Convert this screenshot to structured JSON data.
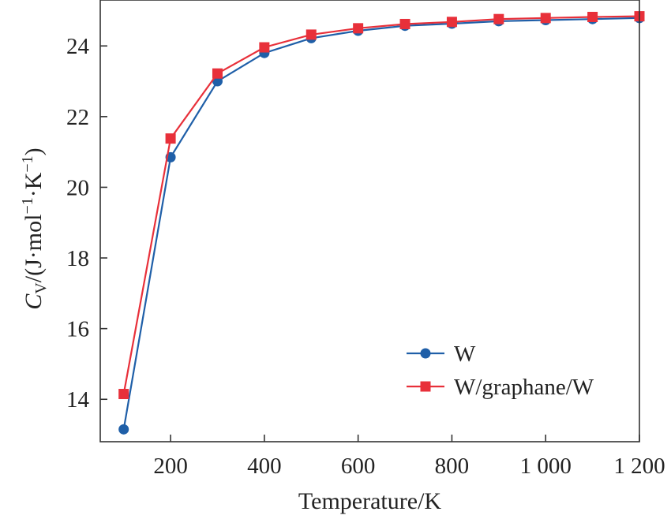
{
  "chart_data": {
    "type": "line",
    "x": [
      100,
      200,
      300,
      400,
      500,
      600,
      700,
      800,
      900,
      1000,
      1100,
      1200
    ],
    "series": [
      {
        "name": "W",
        "values": [
          13.15,
          20.85,
          23.0,
          23.8,
          24.22,
          24.43,
          24.57,
          24.63,
          24.7,
          24.73,
          24.76,
          24.79
        ],
        "color": "#1f5fa8",
        "marker": "circle"
      },
      {
        "name": "W/graphane/W",
        "values": [
          14.15,
          21.38,
          23.22,
          23.96,
          24.32,
          24.5,
          24.62,
          24.68,
          24.76,
          24.79,
          24.82,
          24.84
        ],
        "color": "#e8303a",
        "marker": "square"
      }
    ],
    "xlabel": "Temperature/K",
    "ylabel": {
      "base": "C",
      "sub": "V",
      "mid": "/(J·mol",
      "sup1": "−1",
      "mid2": "·K",
      "sup2": "−1",
      "end": ")"
    },
    "xlim": [
      50,
      1200
    ],
    "ylim": [
      12.8,
      25.3
    ],
    "xticks": [
      200,
      400,
      600,
      800,
      1000,
      1200
    ],
    "xtick_labels": [
      "200",
      "400",
      "600",
      "800",
      "1 000",
      "1 200"
    ],
    "yticks": [
      14,
      16,
      18,
      20,
      22,
      24
    ],
    "ytick_labels": [
      "14",
      "16",
      "18",
      "20",
      "22",
      "24"
    ],
    "legend_position": "lower-right",
    "grid": false
  }
}
